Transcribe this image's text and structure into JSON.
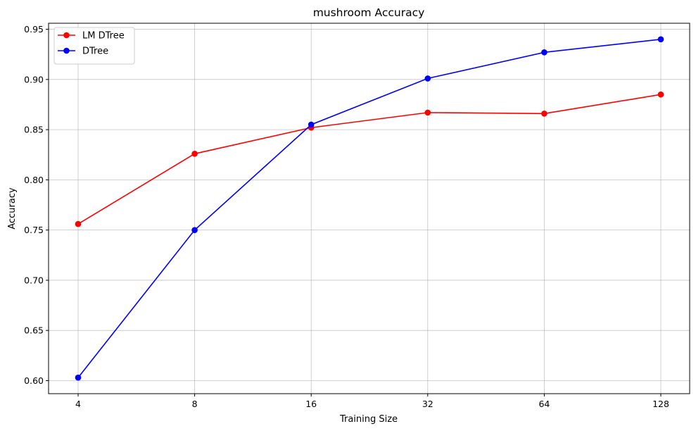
{
  "chart_data": {
    "type": "line",
    "title": "mushroom Accuracy",
    "xlabel": "Training Size",
    "ylabel": "Accuracy",
    "x": [
      4,
      8,
      16,
      32,
      64,
      128
    ],
    "x_scale": "log2",
    "x_ticks": [
      "4",
      "8",
      "16",
      "32",
      "64",
      "128"
    ],
    "ylim": [
      0.587,
      0.956
    ],
    "y_ticks": [
      "0.60",
      "0.65",
      "0.70",
      "0.75",
      "0.80",
      "0.85",
      "0.90",
      "0.95"
    ],
    "grid": true,
    "legend_position": "upper-left",
    "series": [
      {
        "name": "LM DTree",
        "color": "#ff0000",
        "values": [
          0.756,
          0.826,
          0.852,
          0.867,
          0.866,
          0.885
        ]
      },
      {
        "name": "DTree",
        "color": "#0000ff",
        "values": [
          0.603,
          0.75,
          0.855,
          0.901,
          0.927,
          0.94
        ]
      }
    ]
  }
}
